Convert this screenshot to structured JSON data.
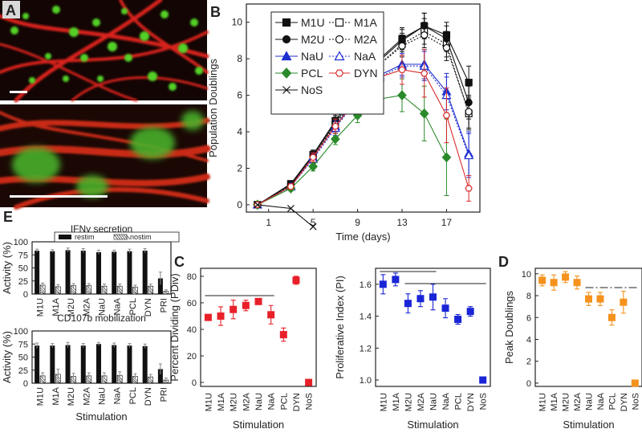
{
  "panel_labels": {
    "a": "A",
    "b": "B",
    "c": "C",
    "d": "D",
    "e": "E"
  },
  "colors": {
    "M1U": "#111111",
    "M1A": "#111111",
    "M2U": "#111111",
    "M2A": "#111111",
    "NaU": "#1f2fd0",
    "NaA": "#1f2fd0",
    "PCL": "#2a8a2a",
    "DYN": "#d92b2b",
    "NoS": "#111111",
    "red": "#e8202a",
    "blue": "#1a25d6",
    "orange": "#f5921e",
    "bar": "#111111"
  },
  "chart_data": [
    {
      "id": "B",
      "type": "line",
      "xlabel": "Time (days)",
      "ylabel": "Population Doublings",
      "xlim": [
        -1,
        20
      ],
      "ylim": [
        -0.4,
        11
      ],
      "xticks": [
        1,
        5,
        9,
        13,
        17
      ],
      "yticks": [
        0,
        2,
        4,
        6,
        8,
        10
      ],
      "x": [
        0,
        3,
        5,
        7,
        9,
        11,
        13,
        15,
        17,
        19
      ],
      "series": [
        {
          "name": "M1U",
          "marker": "square-filled",
          "dash": "solid",
          "values": [
            0,
            1.15,
            2.75,
            4.6,
            6.4,
            8.0,
            9.1,
            9.8,
            9.3,
            6.7
          ],
          "errors": [
            0.1,
            0.15,
            0.25,
            0.4,
            0.5,
            0.5,
            0.6,
            0.7,
            0.7,
            0.9
          ]
        },
        {
          "name": "M1A",
          "marker": "square-open",
          "dash": "dotted",
          "values": [
            0,
            1.05,
            2.6,
            4.4,
            6.0,
            7.7,
            8.8,
            9.5,
            8.8,
            5.0
          ],
          "errors": [
            0.1,
            0.15,
            0.25,
            0.4,
            0.5,
            0.5,
            0.6,
            0.7,
            0.7,
            0.9
          ]
        },
        {
          "name": "M2U",
          "marker": "circle-filled",
          "dash": "solid",
          "values": [
            0,
            1.1,
            2.7,
            4.5,
            6.2,
            7.9,
            9.0,
            9.8,
            9.1,
            5.6
          ],
          "errors": [
            0.1,
            0.15,
            0.25,
            0.4,
            0.5,
            0.5,
            0.6,
            0.7,
            0.7,
            0.9
          ]
        },
        {
          "name": "M2A",
          "marker": "circle-open",
          "dash": "dotted",
          "values": [
            0,
            1.0,
            2.6,
            4.4,
            6.0,
            7.7,
            8.7,
            9.3,
            8.6,
            5.1
          ],
          "errors": [
            0.1,
            0.15,
            0.25,
            0.4,
            0.5,
            0.5,
            0.6,
            0.7,
            0.7,
            0.9
          ]
        },
        {
          "name": "NaU",
          "marker": "triangle-filled",
          "dash": "solid",
          "values": [
            0,
            1.0,
            2.6,
            4.3,
            5.9,
            7.1,
            7.7,
            7.7,
            6.2,
            2.8
          ],
          "errors": [
            0.1,
            0.15,
            0.25,
            0.4,
            0.5,
            0.5,
            0.6,
            0.8,
            1.0,
            1.2
          ]
        },
        {
          "name": "NaA",
          "marker": "triangle-open",
          "dash": "dotted",
          "values": [
            0,
            1.0,
            2.5,
            4.2,
            5.8,
            7.0,
            7.6,
            7.6,
            6.0,
            2.7
          ],
          "errors": [
            0.1,
            0.15,
            0.25,
            0.4,
            0.5,
            0.5,
            0.6,
            0.8,
            1.0,
            1.2
          ]
        },
        {
          "name": "PCL",
          "marker": "diamond-filled",
          "dash": "solid",
          "values": [
            0,
            0.9,
            2.1,
            3.6,
            4.9,
            5.8,
            6.0,
            5.0,
            2.6,
            null
          ],
          "errors": [
            0.1,
            0.15,
            0.25,
            0.3,
            0.4,
            0.6,
            0.9,
            1.5,
            2.1,
            0
          ]
        },
        {
          "name": "DYN",
          "marker": "hexagon-open",
          "dash": "solid",
          "values": [
            0,
            1.0,
            2.6,
            4.3,
            5.8,
            7.0,
            7.4,
            7.2,
            4.9,
            0.9
          ],
          "errors": [
            0.1,
            0.15,
            0.25,
            0.4,
            0.5,
            0.6,
            0.8,
            1.3,
            1.5,
            0.7
          ]
        },
        {
          "name": "NoS",
          "marker": "x",
          "dash": "solid",
          "values": [
            0,
            -0.2,
            -1.2,
            null,
            null,
            null,
            null,
            null,
            null,
            null
          ],
          "errors": [
            0,
            0,
            0,
            0,
            0,
            0,
            0,
            0,
            0,
            0
          ]
        }
      ],
      "legend": "top-left"
    },
    {
      "id": "C-left",
      "type": "scatter",
      "xlabel": "Stimulation",
      "ylabel": "Percent Dividing (PDiv)",
      "ylim": [
        -3,
        86
      ],
      "yticks": [
        0,
        20,
        40,
        60,
        80
      ],
      "categories": [
        "M1U",
        "M1A",
        "M2U",
        "M2A",
        "NaU",
        "NaA",
        "PCL",
        "DYN",
        "NoS"
      ],
      "values": [
        49,
        50,
        55,
        58,
        61,
        51,
        36,
        77,
        0
      ],
      "errors": [
        2,
        7,
        7,
        4,
        2,
        7,
        5,
        3,
        0
      ],
      "significance_lines": [
        [
          0,
          5
        ]
      ]
    },
    {
      "id": "C-right",
      "type": "scatter",
      "xlabel": "Stimulation",
      "ylabel": "Proliferative Index (PI)",
      "ylim": [
        0.96,
        1.7
      ],
      "yticks": [
        1.0,
        1.2,
        1.4,
        1.6
      ],
      "categories": [
        "M1U",
        "M1A",
        "M2U",
        "M2A",
        "NaU",
        "NaA",
        "PCL",
        "DYN",
        "NoS"
      ],
      "values": [
        1.6,
        1.63,
        1.48,
        1.51,
        1.52,
        1.45,
        1.38,
        1.43,
        1.0
      ],
      "errors": [
        0.06,
        0.04,
        0.06,
        0.05,
        0.08,
        0.06,
        0.03,
        0.03,
        0
      ],
      "significance_lines": [
        [
          0,
          4
        ],
        [
          2,
          8
        ]
      ]
    },
    {
      "id": "D",
      "type": "scatter",
      "xlabel": "Stimulation",
      "ylabel": "Peak Doublings",
      "ylim": [
        -0.3,
        10.5
      ],
      "yticks": [
        0,
        2,
        4,
        6,
        8,
        10
      ],
      "categories": [
        "M1U",
        "M1A",
        "M2U",
        "M2A",
        "NaU",
        "NaA",
        "PCL",
        "DYN",
        "NoS"
      ],
      "values": [
        9.4,
        9.2,
        9.7,
        9.2,
        7.7,
        7.7,
        6.0,
        7.4,
        0
      ],
      "errors": [
        0.5,
        0.7,
        0.5,
        0.6,
        0.6,
        0.6,
        0.7,
        1.0,
        0
      ],
      "significance_lines": [
        [
          0,
          3
        ],
        [
          4,
          8
        ]
      ]
    },
    {
      "id": "E-top",
      "type": "bar",
      "title": "IFNγ secretion",
      "ylabel": "Activity (%)",
      "ylim": [
        0,
        100
      ],
      "yticks": [
        0,
        25,
        50,
        75,
        100
      ],
      "categories": [
        "M1U",
        "M1A",
        "M2U",
        "M2A",
        "NaU",
        "NaA",
        "PCL",
        "DYN",
        "PRI"
      ],
      "legend_labels": [
        "restim",
        "nostim"
      ],
      "series": [
        {
          "name": "restim",
          "values": [
            83,
            82,
            84,
            83,
            80,
            81,
            82,
            83,
            30
          ],
          "errors": [
            3,
            3,
            4,
            4,
            4,
            3,
            4,
            4,
            12
          ]
        },
        {
          "name": "nostim",
          "values": [
            17,
            14,
            16,
            16,
            15,
            15,
            13,
            15,
            5
          ],
          "errors": [
            4,
            4,
            4,
            4,
            4,
            4,
            4,
            4,
            3
          ]
        }
      ]
    },
    {
      "id": "E-bottom",
      "type": "bar",
      "title": "CD107b mobilization",
      "xlabel": "Stimulation",
      "ylabel": "Activity (%)",
      "ylim": [
        0,
        100
      ],
      "yticks": [
        0,
        25,
        50,
        75,
        100
      ],
      "categories": [
        "M1U",
        "M1A",
        "M2U",
        "M2A",
        "NaU",
        "NaA",
        "PCL",
        "DYN",
        "PRI"
      ],
      "series": [
        {
          "name": "restim",
          "values": [
            72,
            72,
            73,
            72,
            75,
            73,
            72,
            71,
            27
          ],
          "errors": [
            5,
            4,
            5,
            4,
            3,
            4,
            4,
            4,
            10
          ]
        },
        {
          "name": "nostim",
          "values": [
            14,
            17,
            13,
            14,
            14,
            15,
            13,
            12,
            6
          ],
          "errors": [
            6,
            10,
            6,
            6,
            6,
            7,
            5,
            5,
            4
          ]
        }
      ]
    }
  ]
}
